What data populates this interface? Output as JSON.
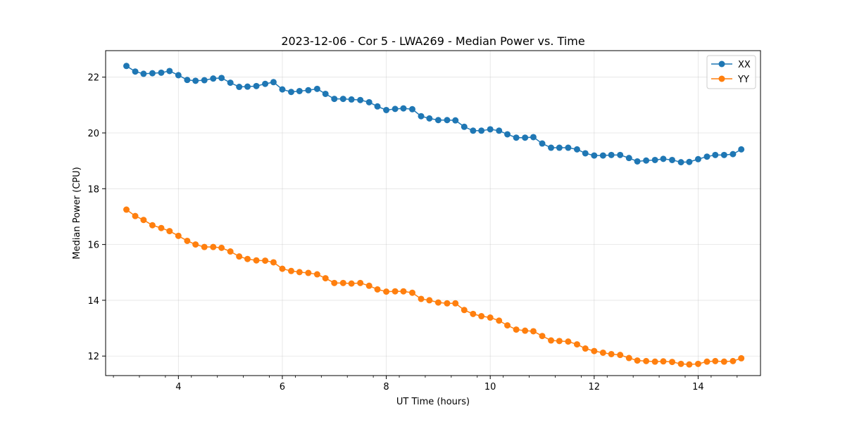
{
  "chart_data": {
    "type": "line",
    "title": "2023-12-06 - Cor 5 - LWA269 - Median Power vs. Time",
    "xlabel": "UT Time (hours)",
    "ylabel": "Median Power (CPU)",
    "xlim": [
      2.6,
      15.2
    ],
    "ylim": [
      11.3,
      22.95
    ],
    "xticks": [
      4,
      6,
      8,
      10,
      12,
      14
    ],
    "xtick_labels": [
      "4",
      "6",
      "8",
      "10",
      "12",
      "14"
    ],
    "yticks": [
      12,
      14,
      16,
      18,
      20,
      22
    ],
    "ytick_labels": [
      "12",
      "14",
      "16",
      "18",
      "20",
      "22"
    ],
    "grid": true,
    "legend_position": "top-right",
    "x": [
      3.0,
      3.17,
      3.33,
      3.5,
      3.67,
      3.83,
      4.0,
      4.17,
      4.33,
      4.5,
      4.67,
      4.83,
      5.0,
      5.17,
      5.33,
      5.5,
      5.67,
      5.83,
      6.0,
      6.17,
      6.33,
      6.5,
      6.67,
      6.83,
      7.0,
      7.17,
      7.33,
      7.5,
      7.67,
      7.83,
      8.0,
      8.17,
      8.33,
      8.5,
      8.67,
      8.83,
      9.0,
      9.17,
      9.33,
      9.5,
      9.67,
      9.83,
      10.0,
      10.17,
      10.33,
      10.5,
      10.67,
      10.83,
      11.0,
      11.17,
      11.33,
      11.5,
      11.67,
      11.83,
      12.0,
      12.17,
      12.33,
      12.5,
      12.67,
      12.83,
      13.0,
      13.17,
      13.33,
      13.5,
      13.67,
      13.83,
      14.0,
      14.17,
      14.33,
      14.5,
      14.67,
      14.83
    ],
    "series": [
      {
        "name": "XX",
        "color": "#1f77b4",
        "values": [
          22.4,
          22.2,
          22.12,
          22.14,
          22.16,
          22.22,
          22.07,
          21.9,
          21.87,
          21.89,
          21.95,
          21.97,
          21.8,
          21.65,
          21.66,
          21.68,
          21.76,
          21.82,
          21.56,
          21.47,
          21.5,
          21.53,
          21.58,
          21.4,
          21.22,
          21.22,
          21.2,
          21.18,
          21.1,
          20.95,
          20.82,
          20.86,
          20.88,
          20.85,
          20.6,
          20.52,
          20.46,
          20.46,
          20.45,
          20.22,
          20.08,
          20.08,
          20.13,
          20.08,
          19.95,
          19.83,
          19.83,
          19.85,
          19.62,
          19.47,
          19.47,
          19.47,
          19.41,
          19.27,
          19.19,
          19.19,
          19.21,
          19.21,
          19.1,
          18.98,
          19.01,
          19.03,
          19.07,
          19.03,
          18.95,
          18.96,
          19.06,
          19.15,
          19.21,
          19.21,
          19.24,
          19.41
        ]
      },
      {
        "name": "YY",
        "color": "#ff7f0e",
        "values": [
          17.25,
          17.02,
          16.88,
          16.69,
          16.59,
          16.48,
          16.31,
          16.13,
          16.0,
          15.91,
          15.91,
          15.88,
          15.75,
          15.57,
          15.48,
          15.43,
          15.42,
          15.36,
          15.13,
          15.05,
          15.01,
          14.98,
          14.93,
          14.79,
          14.62,
          14.62,
          14.6,
          14.62,
          14.52,
          14.39,
          14.31,
          14.32,
          14.32,
          14.27,
          14.05,
          14.0,
          13.92,
          13.89,
          13.89,
          13.65,
          13.51,
          13.43,
          13.38,
          13.27,
          13.1,
          12.95,
          12.91,
          12.89,
          12.72,
          12.56,
          12.54,
          12.52,
          12.42,
          12.27,
          12.18,
          12.12,
          12.07,
          12.04,
          11.93,
          11.84,
          11.82,
          11.8,
          11.81,
          11.79,
          11.72,
          11.7,
          11.72,
          11.8,
          11.82,
          11.8,
          11.82,
          11.92
        ]
      }
    ]
  }
}
